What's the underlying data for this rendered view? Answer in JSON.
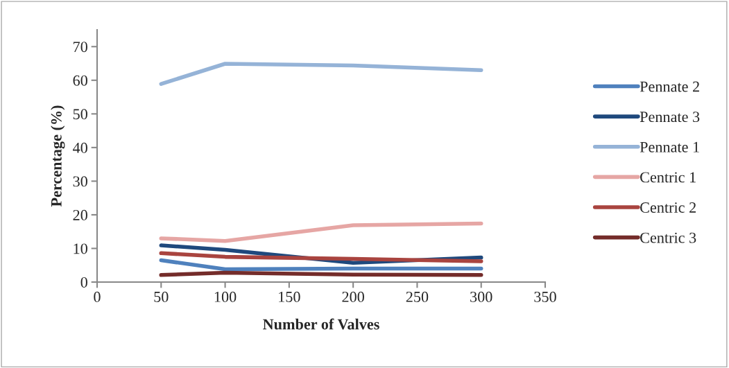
{
  "chart_data": {
    "type": "line",
    "xlabel": "Number of Valves",
    "ylabel": "Percentage (%)",
    "x": [
      50,
      100,
      200,
      300
    ],
    "xlim": [
      0,
      350
    ],
    "xticks": [
      0,
      50,
      100,
      150,
      200,
      250,
      300,
      350
    ],
    "ylim": [
      0,
      75
    ],
    "yticks": [
      0,
      10,
      20,
      30,
      40,
      50,
      60,
      70
    ],
    "grid": false,
    "legend": "right",
    "marker": "none",
    "line_style": "solid",
    "series": [
      {
        "name": "Pennate 2",
        "color": "#4f81bd",
        "values": [
          6.5,
          3.8,
          4.0,
          4.0
        ]
      },
      {
        "name": "Pennate 3",
        "color": "#1f497d",
        "values": [
          10.9,
          9.6,
          5.7,
          7.3
        ]
      },
      {
        "name": "Pennate 1",
        "color": "#95b3d7",
        "values": [
          58.9,
          64.9,
          64.4,
          63.0
        ]
      },
      {
        "name": "Centric 1",
        "color": "#e6a6a4",
        "values": [
          13.0,
          12.2,
          16.9,
          17.4
        ]
      },
      {
        "name": "Centric 2",
        "color": "#a9443f",
        "values": [
          8.6,
          7.5,
          6.9,
          6.2
        ]
      },
      {
        "name": "Centric 3",
        "color": "#742c2a",
        "values": [
          2.1,
          2.8,
          2.2,
          2.1
        ]
      }
    ]
  }
}
